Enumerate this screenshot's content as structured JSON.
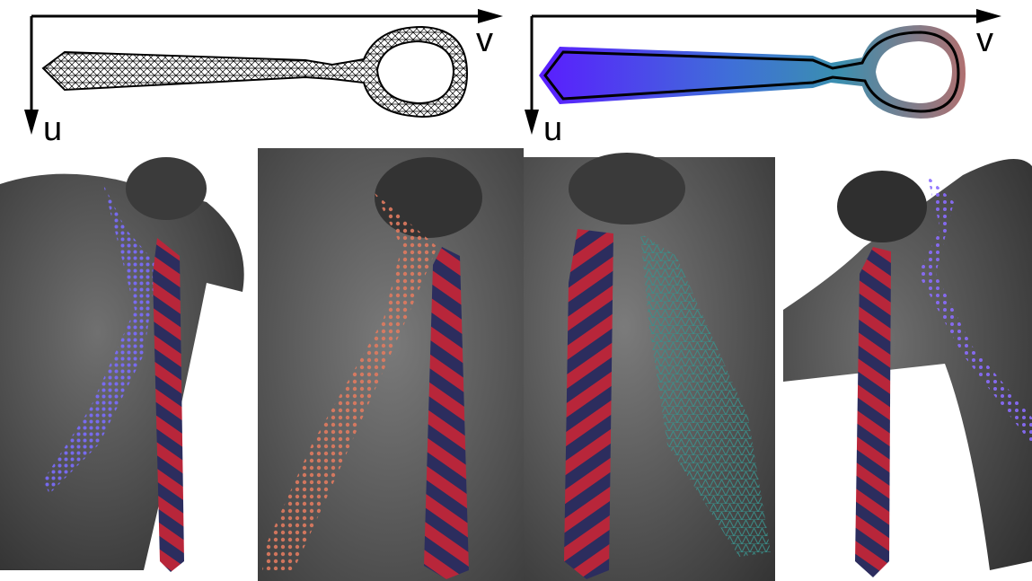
{
  "figure": {
    "uv_panels": [
      {
        "u_label": "u",
        "v_label": "v",
        "style": "wireframe mesh"
      },
      {
        "u_label": "u",
        "v_label": "v",
        "style": "gradient field"
      }
    ],
    "renders": [
      {
        "dots_color": "#7a6cff"
      },
      {
        "dots_color": "#e07a5f"
      },
      {
        "dots_color": "#3a8f8a"
      },
      {
        "dots_color": "#8a6cff"
      }
    ],
    "colors": {
      "tie_red": "#b8263a",
      "tie_navy": "#2c2d5e",
      "body_gray": "#4a4a4a",
      "gradient_start": "#5a1dff",
      "gradient_end": "#8a9a9a"
    }
  }
}
